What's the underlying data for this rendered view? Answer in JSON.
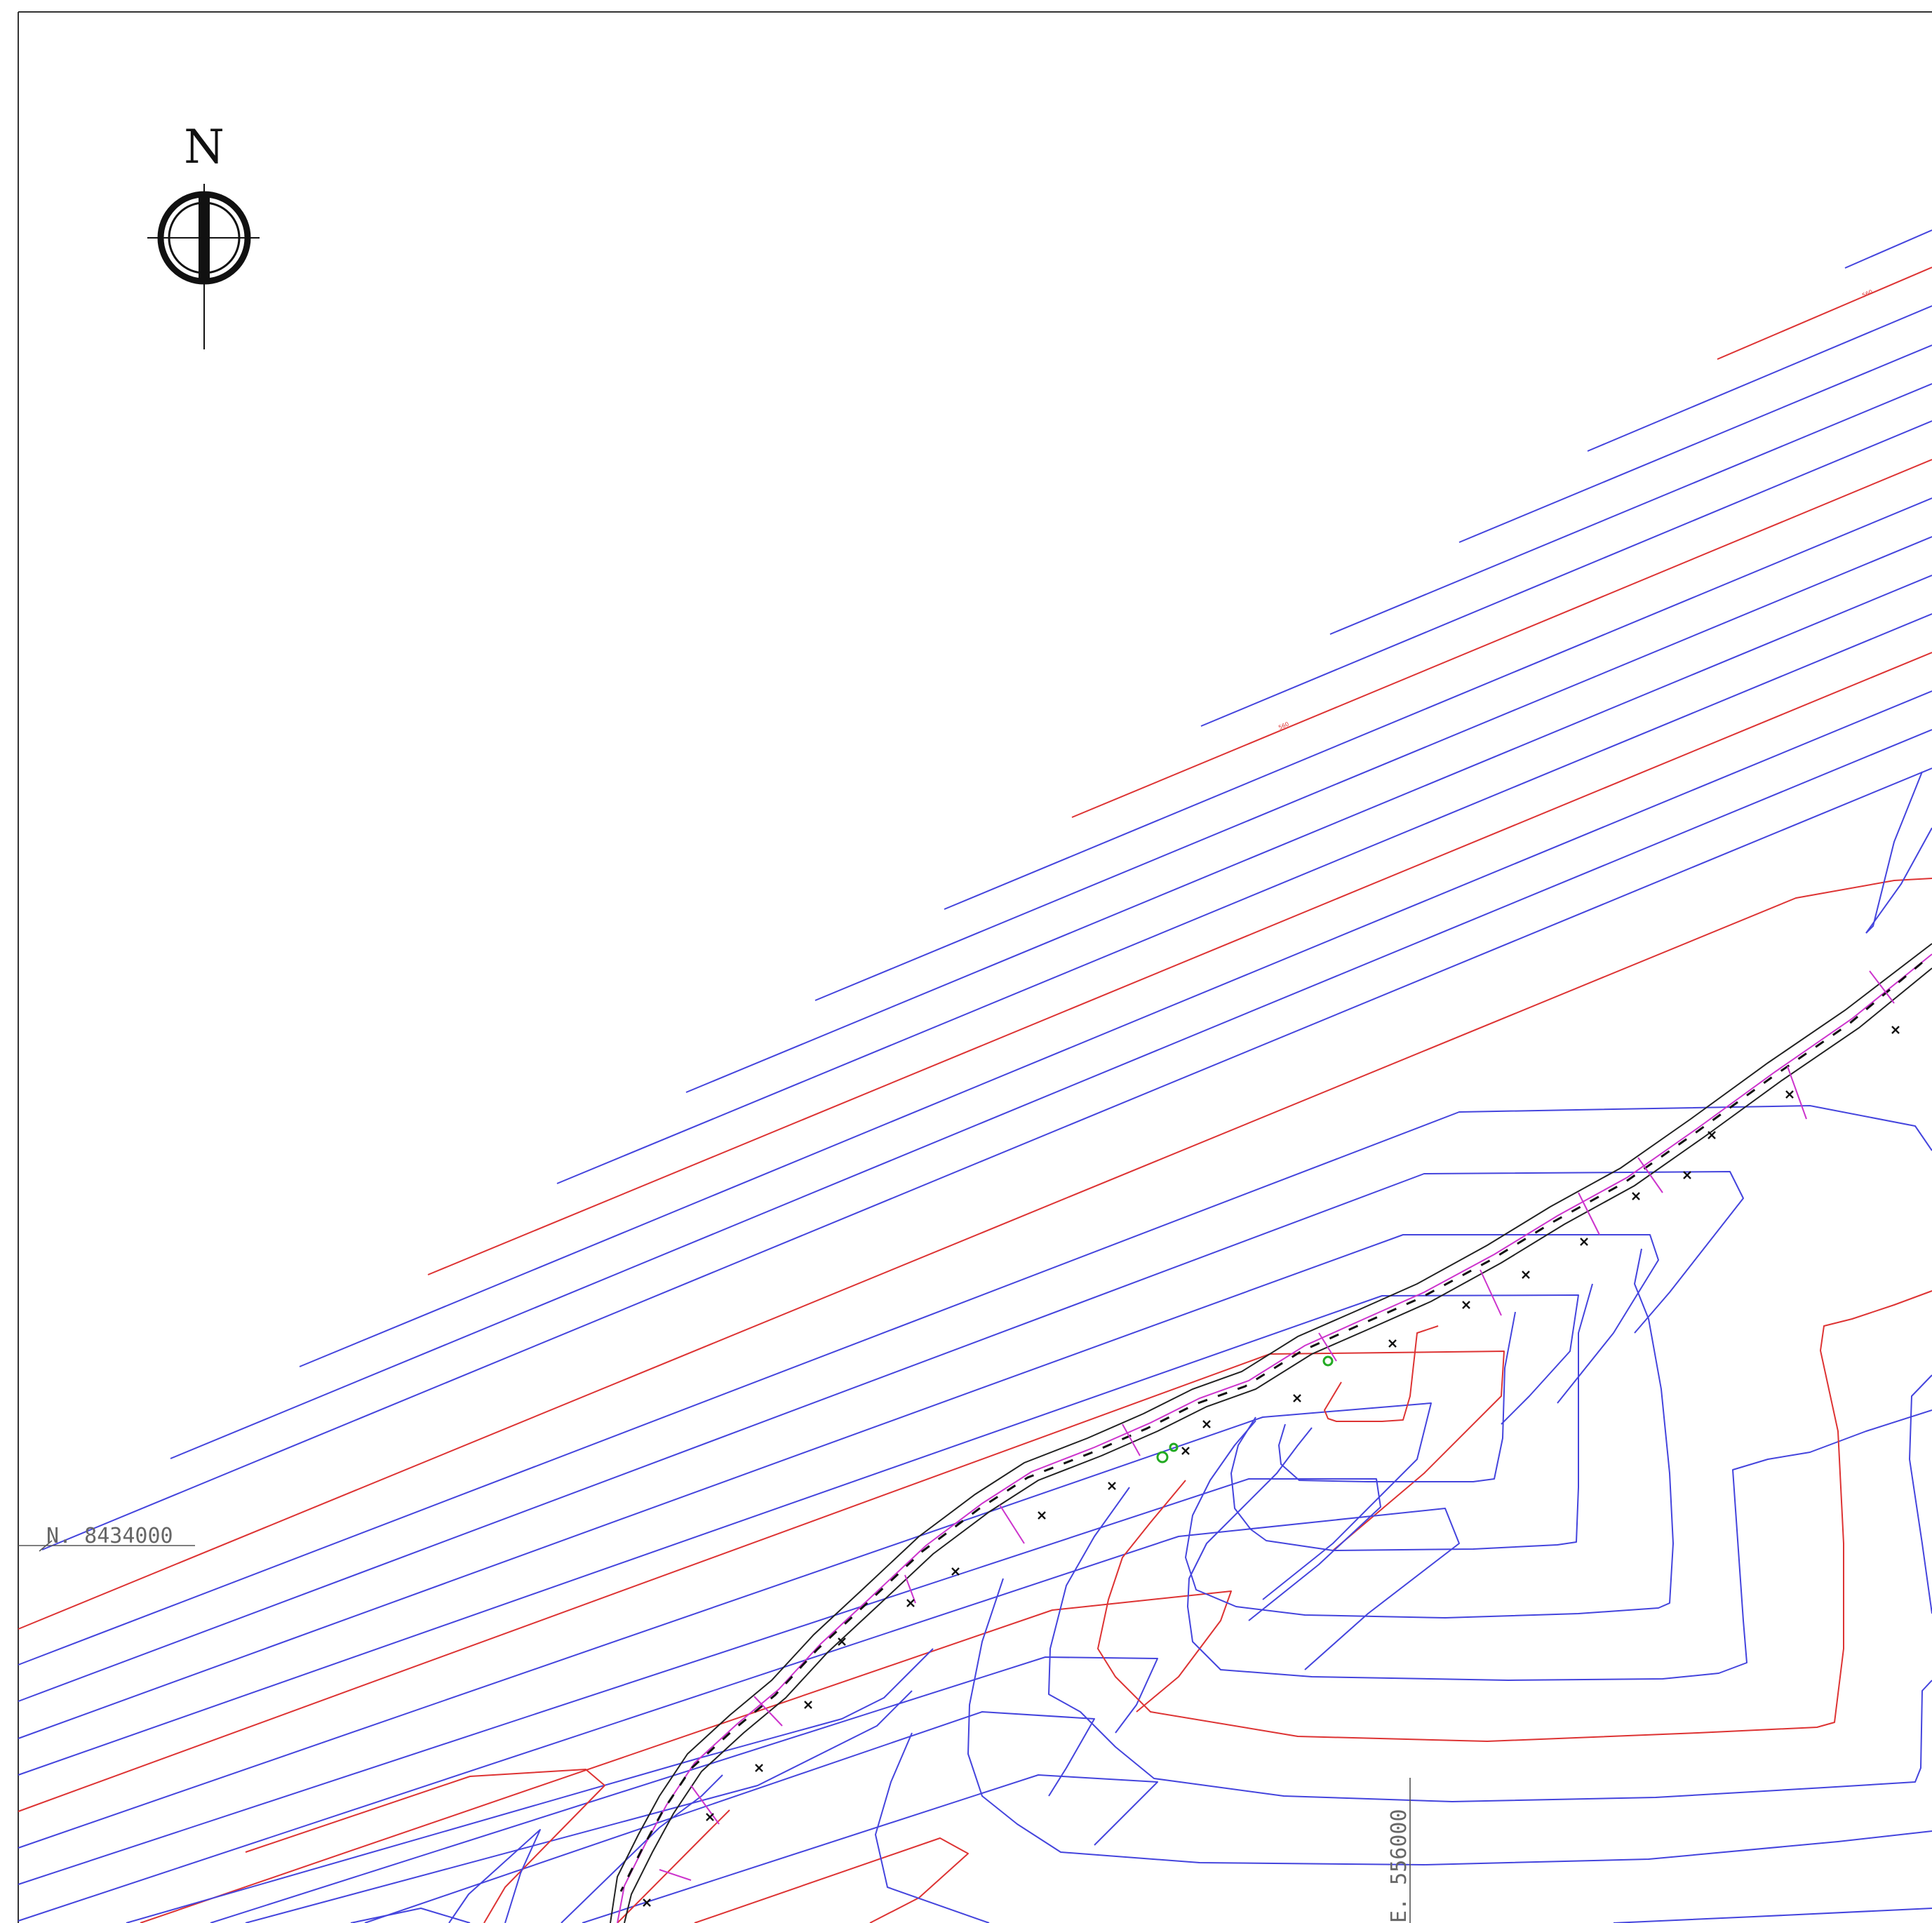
{
  "north_arrow": {
    "letter": "N",
    "icon": "north-arrow-icon"
  },
  "grid_labels": {
    "northing": "N.  8434000",
    "easting": "E.  556000"
  },
  "contour_labels": {
    "upper": "560",
    "lower": "560"
  },
  "colors": {
    "minor_contour": "#4444dd",
    "index_contour": "#dd3333",
    "road_centerline": "#cc33cc",
    "road_edge": "#222222",
    "point_marker": "#22aa22",
    "frame": "#333333"
  },
  "legend": {
    "marker_icons": [
      "x-cross-icon",
      "survey-point-icon"
    ]
  }
}
